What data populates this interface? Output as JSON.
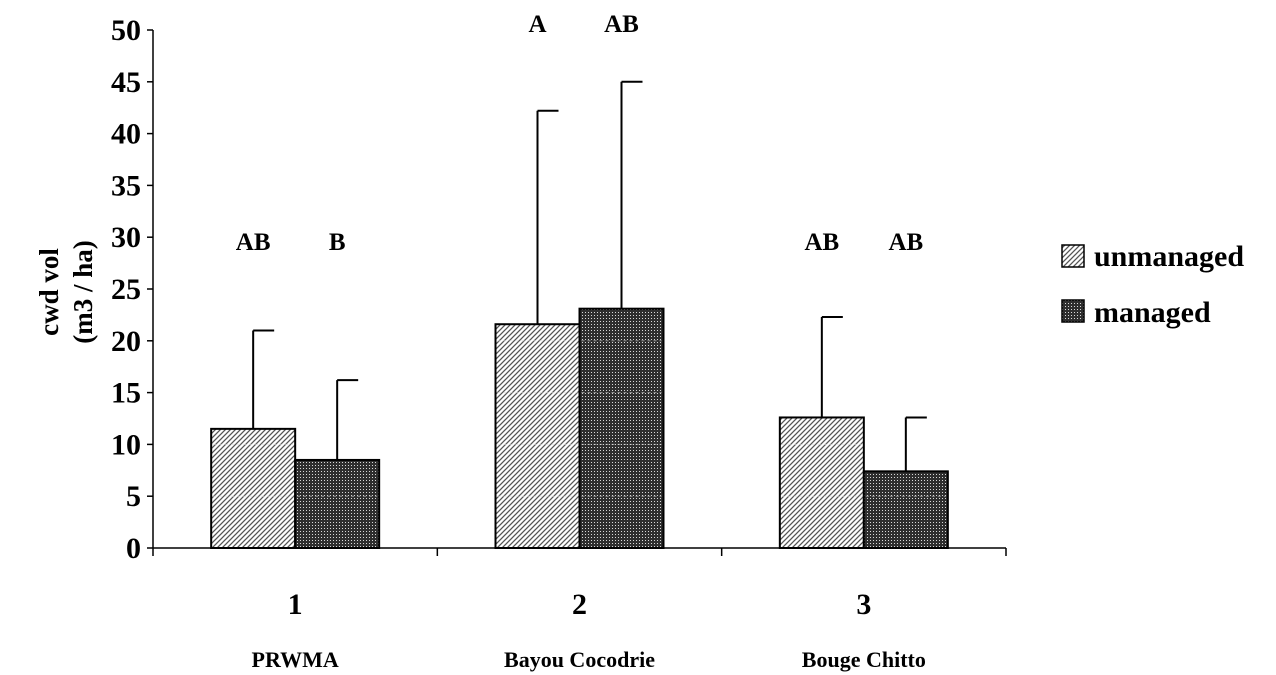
{
  "chart_data": {
    "type": "bar",
    "categories": [
      "1",
      "2",
      "3"
    ],
    "group_labels": [
      "PRWMA",
      "Bayou Cocodrie",
      "Bouge Chitto"
    ],
    "ylabel_lines": [
      "cwd vol",
      "(m3 / ha)"
    ],
    "xlabel": "",
    "ylim": [
      0,
      50
    ],
    "yticks": [
      0,
      5,
      10,
      15,
      20,
      25,
      30,
      35,
      40,
      45,
      50
    ],
    "series": [
      {
        "name": "unmanaged",
        "values": [
          11.5,
          21.6,
          12.6
        ],
        "error_upper": [
          21.0,
          42.2,
          22.3
        ],
        "significance": [
          "AB",
          "A",
          "AB"
        ],
        "fill": "diagonal-hatch-light"
      },
      {
        "name": "managed",
        "values": [
          8.5,
          23.1,
          7.4
        ],
        "error_upper": [
          16.2,
          45.0,
          12.6
        ],
        "significance": [
          "B",
          "AB",
          "AB"
        ],
        "fill": "dense-dotted-dark"
      }
    ],
    "legend_position": "right",
    "grid": false
  }
}
